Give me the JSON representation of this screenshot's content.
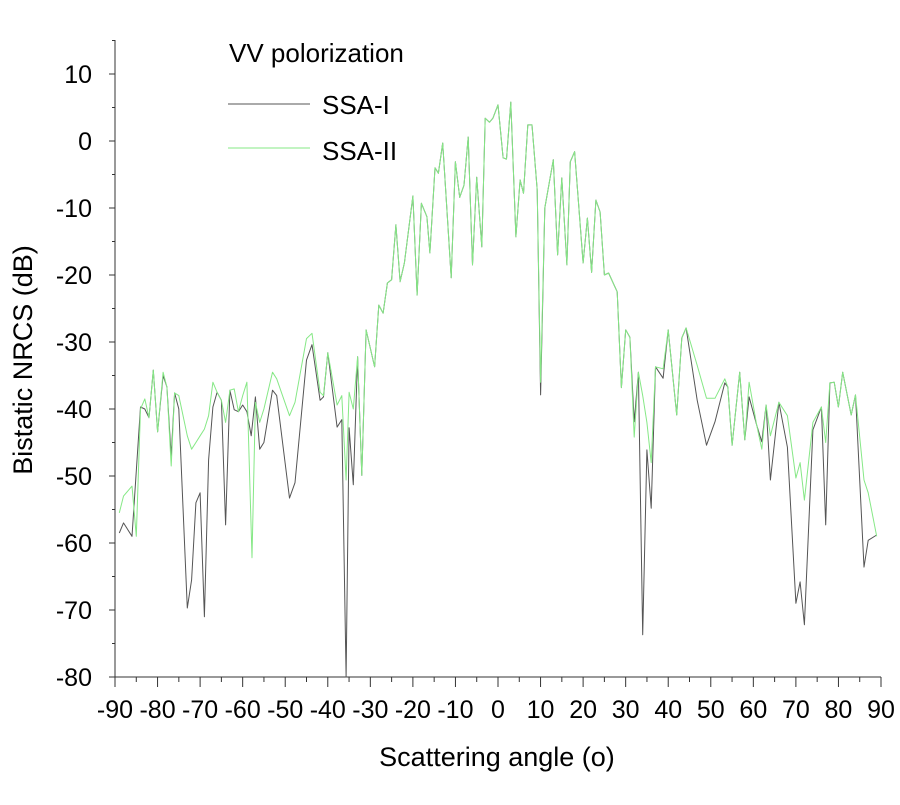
{
  "chart_data": {
    "type": "line",
    "title": "VV polorization",
    "xlabel": "Scattering angle (o)",
    "ylabel": "Bistatic NRCS (dB)",
    "xlim": [
      -90,
      90
    ],
    "ylim": [
      -80,
      10
    ],
    "xticks": [
      -90,
      -80,
      -70,
      -60,
      -50,
      -40,
      -30,
      -20,
      -10,
      0,
      10,
      20,
      30,
      40,
      50,
      60,
      70,
      80,
      90
    ],
    "yticks": [
      10,
      0,
      -10,
      -20,
      -30,
      -40,
      -50,
      -60,
      -70,
      -80
    ],
    "grid": false,
    "legend_position": "top-left",
    "series": [
      {
        "name": "SSA-I",
        "color": "#555555",
        "points": [
          [
            -89,
            -58.5
          ],
          [
            -88,
            -57
          ],
          [
            -86,
            -59
          ],
          [
            -84,
            -39.7
          ],
          [
            -83,
            -40
          ],
          [
            -82,
            -41.3
          ],
          [
            -81,
            -34.2
          ],
          [
            -80,
            -43.4
          ],
          [
            -78.7,
            -35
          ],
          [
            -77.8,
            -36.7
          ],
          [
            -76.8,
            -47
          ],
          [
            -76,
            -37.6
          ],
          [
            -75,
            -40
          ],
          [
            -73,
            -69.7
          ],
          [
            -72,
            -65.5
          ],
          [
            -71,
            -54
          ],
          [
            -70,
            -52.5
          ],
          [
            -69,
            -71
          ],
          [
            -68,
            -47.6
          ],
          [
            -67,
            -39.7
          ],
          [
            -66,
            -37.5
          ],
          [
            -65,
            -38.7
          ],
          [
            -64,
            -57.3
          ],
          [
            -63,
            -37.2
          ],
          [
            -62,
            -40.1
          ],
          [
            -61,
            -40.4
          ],
          [
            -60,
            -39.4
          ],
          [
            -59,
            -40.4
          ],
          [
            -58,
            -44
          ],
          [
            -57,
            -38.2
          ],
          [
            -56,
            -46
          ],
          [
            -55,
            -45
          ],
          [
            -53,
            -37.2
          ],
          [
            -52,
            -38
          ],
          [
            -49,
            -53.3
          ],
          [
            -47.7,
            -51
          ],
          [
            -45,
            -32.7
          ],
          [
            -43.7,
            -30.4
          ],
          [
            -41.8,
            -38.7
          ],
          [
            -41,
            -38.2
          ],
          [
            -40,
            -31.6
          ],
          [
            -37.8,
            -42.7
          ],
          [
            -36.7,
            -41.6
          ],
          [
            -35.7,
            -80
          ],
          [
            -35,
            -42.8
          ],
          [
            -34,
            -51.3
          ],
          [
            -33,
            -32.2
          ],
          [
            -32,
            -49.9
          ],
          [
            -31,
            -28.2
          ],
          [
            -29,
            -33.7
          ],
          [
            -28,
            -24.5
          ],
          [
            -27,
            -25.7
          ],
          [
            -26,
            -21.2
          ],
          [
            -25,
            -20.7
          ],
          [
            -24,
            -12.5
          ],
          [
            -23,
            -21
          ],
          [
            -22,
            -18.2
          ],
          [
            -20,
            -8.2
          ],
          [
            -19,
            -23
          ],
          [
            -18,
            -9.3
          ],
          [
            -16.7,
            -11.3
          ],
          [
            -16,
            -16.7
          ],
          [
            -14.8,
            -4
          ],
          [
            -14,
            -4.8
          ],
          [
            -13,
            -0.3
          ],
          [
            -11,
            -20.4
          ],
          [
            -10,
            -3.1
          ],
          [
            -9,
            -8.4
          ],
          [
            -8,
            -6.6
          ],
          [
            -7,
            0.6
          ],
          [
            -6,
            -18.5
          ],
          [
            -5,
            -5.4
          ],
          [
            -3.8,
            -15.8
          ],
          [
            -3,
            3.4
          ],
          [
            -2,
            2.8
          ],
          [
            -1.2,
            3.4
          ],
          [
            0,
            5.4
          ],
          [
            1.2,
            -2.5
          ],
          [
            2,
            -2.7
          ],
          [
            3,
            5.8
          ],
          [
            4.2,
            -14.3
          ],
          [
            5.2,
            -5.8
          ],
          [
            6,
            -7.8
          ],
          [
            7,
            2.4
          ],
          [
            8,
            2.4
          ],
          [
            9.2,
            -7.3
          ],
          [
            10,
            -37.9
          ],
          [
            11,
            -10
          ],
          [
            13,
            -2.8
          ],
          [
            14,
            -17
          ],
          [
            15,
            -5.5
          ],
          [
            16.2,
            -18.5
          ],
          [
            17,
            -3.1
          ],
          [
            18,
            -1.6
          ],
          [
            20,
            -18.2
          ],
          [
            21,
            -11.5
          ],
          [
            22,
            -19.6
          ],
          [
            23,
            -8.8
          ],
          [
            24,
            -10.6
          ],
          [
            25,
            -20
          ],
          [
            26,
            -19.7
          ],
          [
            28,
            -22.5
          ],
          [
            29,
            -36.8
          ],
          [
            30,
            -28.2
          ],
          [
            31,
            -29.3
          ],
          [
            32,
            -41.9
          ],
          [
            33,
            -34.5
          ],
          [
            34,
            -73.7
          ],
          [
            35,
            -46.1
          ],
          [
            36,
            -54.8
          ],
          [
            37,
            -33.7
          ],
          [
            38.8,
            -35.4
          ],
          [
            40,
            -28.2
          ],
          [
            42,
            -40.9
          ],
          [
            43.2,
            -29.4
          ],
          [
            44.2,
            -27.9
          ],
          [
            46.8,
            -38.7
          ],
          [
            49,
            -45.4
          ],
          [
            51,
            -41.9
          ],
          [
            53.3,
            -36.1
          ],
          [
            54,
            -36.7
          ],
          [
            55,
            -45.4
          ],
          [
            56.8,
            -34.5
          ],
          [
            58,
            -44.6
          ],
          [
            59,
            -38.2
          ],
          [
            60.8,
            -42.4
          ],
          [
            62,
            -44.9
          ],
          [
            63,
            -39.4
          ],
          [
            64,
            -50.6
          ],
          [
            66,
            -39
          ],
          [
            68,
            -45.7
          ],
          [
            70,
            -69
          ],
          [
            71,
            -65.8
          ],
          [
            72,
            -72.2
          ],
          [
            74,
            -43.1
          ],
          [
            76,
            -39.7
          ],
          [
            77,
            -57.3
          ],
          [
            78,
            -36.1
          ],
          [
            79,
            -36
          ],
          [
            80,
            -39.7
          ],
          [
            81,
            -34.5
          ],
          [
            83,
            -40.9
          ],
          [
            84,
            -37.9
          ],
          [
            86,
            -63.6
          ],
          [
            87,
            -59.6
          ],
          [
            89,
            -58.8
          ]
        ]
      },
      {
        "name": "SSA-II",
        "color": "#86e886",
        "points": [
          [
            -89,
            -55.5
          ],
          [
            -88,
            -53
          ],
          [
            -86,
            -51.5
          ],
          [
            -85,
            -59
          ],
          [
            -84,
            -40
          ],
          [
            -83,
            -38.5
          ],
          [
            -82,
            -41.3
          ],
          [
            -81,
            -34.2
          ],
          [
            -80,
            -43.4
          ],
          [
            -78.7,
            -34.5
          ],
          [
            -77.8,
            -36.7
          ],
          [
            -76.8,
            -48.5
          ],
          [
            -76,
            -37.6
          ],
          [
            -75,
            -38
          ],
          [
            -73,
            -44
          ],
          [
            -72,
            -46
          ],
          [
            -71,
            -45
          ],
          [
            -70,
            -44
          ],
          [
            -69,
            -43
          ],
          [
            -68,
            -41
          ],
          [
            -67,
            -36
          ],
          [
            -66,
            -37.5
          ],
          [
            -65,
            -38.7
          ],
          [
            -64,
            -42
          ],
          [
            -63,
            -37.2
          ],
          [
            -62,
            -37
          ],
          [
            -61,
            -40.4
          ],
          [
            -60,
            -38
          ],
          [
            -59,
            -36
          ],
          [
            -57.8,
            -62.2
          ],
          [
            -57,
            -39
          ],
          [
            -56,
            -42
          ],
          [
            -55,
            -40
          ],
          [
            -53,
            -34.5
          ],
          [
            -52,
            -35.5
          ],
          [
            -49,
            -41
          ],
          [
            -47.7,
            -39
          ],
          [
            -45,
            -29.5
          ],
          [
            -43.7,
            -28.7
          ],
          [
            -41.8,
            -37.5
          ],
          [
            -41,
            -38
          ],
          [
            -40,
            -31.6
          ],
          [
            -37.8,
            -39.4
          ],
          [
            -36.7,
            -38
          ],
          [
            -35.7,
            -50.6
          ],
          [
            -35,
            -37.5
          ],
          [
            -34,
            -40
          ],
          [
            -33,
            -32.2
          ],
          [
            -32,
            -49.9
          ],
          [
            -31,
            -28.2
          ],
          [
            -29,
            -33.7
          ],
          [
            -28,
            -24.5
          ],
          [
            -27,
            -25.7
          ],
          [
            -26,
            -21.2
          ],
          [
            -25,
            -20.7
          ],
          [
            -24,
            -12.5
          ],
          [
            -23,
            -21
          ],
          [
            -22,
            -18.2
          ],
          [
            -20,
            -8.2
          ],
          [
            -19,
            -23
          ],
          [
            -18,
            -9.3
          ],
          [
            -16.7,
            -11.3
          ],
          [
            -16,
            -16.7
          ],
          [
            -14.8,
            -4
          ],
          [
            -14,
            -4.8
          ],
          [
            -13,
            -0.3
          ],
          [
            -11,
            -20.4
          ],
          [
            -10,
            -3.1
          ],
          [
            -9,
            -8.4
          ],
          [
            -8,
            -6.6
          ],
          [
            -7,
            0.6
          ],
          [
            -6,
            -18.5
          ],
          [
            -5,
            -5.4
          ],
          [
            -3.8,
            -15.8
          ],
          [
            -3,
            3.4
          ],
          [
            -2,
            2.8
          ],
          [
            -1.2,
            3.4
          ],
          [
            0,
            5.4
          ],
          [
            1.2,
            -2.5
          ],
          [
            2,
            -2.7
          ],
          [
            3,
            5.8
          ],
          [
            4.2,
            -14.3
          ],
          [
            5.2,
            -5.8
          ],
          [
            6,
            -7.8
          ],
          [
            7,
            2.4
          ],
          [
            8,
            2.4
          ],
          [
            9.2,
            -7.3
          ],
          [
            10,
            -36
          ],
          [
            11,
            -10
          ],
          [
            13,
            -2.8
          ],
          [
            14,
            -17
          ],
          [
            15,
            -5.5
          ],
          [
            16.2,
            -18.5
          ],
          [
            17,
            -3.1
          ],
          [
            18,
            -1.6
          ],
          [
            20,
            -18.2
          ],
          [
            21,
            -11.5
          ],
          [
            22,
            -19.6
          ],
          [
            23,
            -8.8
          ],
          [
            24,
            -10.6
          ],
          [
            25,
            -20
          ],
          [
            26,
            -19.7
          ],
          [
            28,
            -22.5
          ],
          [
            29,
            -36.8
          ],
          [
            30,
            -28.2
          ],
          [
            31,
            -29.3
          ],
          [
            32,
            -44.2
          ],
          [
            33,
            -34.5
          ],
          [
            34,
            -38
          ],
          [
            35,
            -42
          ],
          [
            36,
            -48
          ],
          [
            37,
            -33.7
          ],
          [
            38.8,
            -34
          ],
          [
            40,
            -28.2
          ],
          [
            42,
            -40.9
          ],
          [
            43.2,
            -29.4
          ],
          [
            44.2,
            -27.9
          ],
          [
            46.8,
            -33.5
          ],
          [
            49,
            -38.4
          ],
          [
            51,
            -38.4
          ],
          [
            53.3,
            -35.5
          ],
          [
            54,
            -36.7
          ],
          [
            55,
            -45.4
          ],
          [
            56.8,
            -34.5
          ],
          [
            58,
            -44.6
          ],
          [
            59,
            -36
          ],
          [
            60.8,
            -42.4
          ],
          [
            62,
            -46
          ],
          [
            63,
            -39.4
          ],
          [
            64,
            -44
          ],
          [
            66,
            -39
          ],
          [
            68,
            -41
          ],
          [
            70,
            -50.3
          ],
          [
            71,
            -48
          ],
          [
            72,
            -53.6
          ],
          [
            74,
            -42
          ],
          [
            76,
            -39.7
          ],
          [
            77,
            -45
          ],
          [
            78,
            -36.1
          ],
          [
            79,
            -36
          ],
          [
            80,
            -39.7
          ],
          [
            81,
            -34.5
          ],
          [
            83,
            -40.9
          ],
          [
            84,
            -37.9
          ],
          [
            86,
            -50.6
          ],
          [
            87,
            -52.5
          ],
          [
            89,
            -59
          ]
        ]
      }
    ]
  }
}
